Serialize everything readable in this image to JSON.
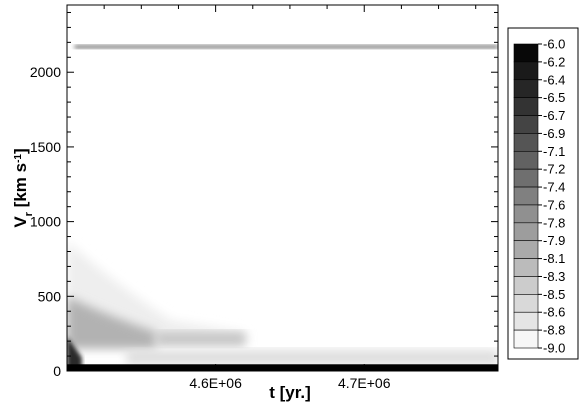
{
  "chart_data": {
    "type": "heatmap",
    "xlabel": "t [yr.]",
    "ylabel_main": "V",
    "ylabel_sub": "r",
    "ylabel_unit": " [km s",
    "ylabel_sup": "-1",
    "ylabel_close": "]",
    "xlim": [
      4500000,
      4790000
    ],
    "ylim": [
      0,
      2450
    ],
    "x_ticks": [
      {
        "value": 4600000,
        "label": "4.6E+06"
      },
      {
        "value": 4700000,
        "label": "4.7E+06"
      }
    ],
    "y_ticks": [
      {
        "value": 0,
        "label": "0"
      },
      {
        "value": 500,
        "label": "500"
      },
      {
        "value": 1000,
        "label": "1000"
      },
      {
        "value": 1500,
        "label": "1500"
      },
      {
        "value": 2000,
        "label": "2000"
      }
    ],
    "colorbar": {
      "levels": [
        "-6.0",
        "-6.2",
        "-6.4",
        "-6.5",
        "-6.7",
        "-6.9",
        "-7.1",
        "-7.2",
        "-7.4",
        "-7.6",
        "-7.8",
        "-7.9",
        "-8.1",
        "-8.3",
        "-8.5",
        "-8.6",
        "-8.8",
        "-9.0"
      ],
      "range": [
        -9.0,
        -6.0
      ]
    },
    "features": [
      {
        "name": "steady-band",
        "x_start": 4500000,
        "x_end": 4790000,
        "v_center": 2170,
        "v_halfwidth": 12,
        "level": -7.4
      },
      {
        "name": "floor-band",
        "x_start": 4500000,
        "x_end": 4790000,
        "v_low": 0,
        "v_high": 45,
        "level": -6.0
      },
      {
        "name": "plume-core",
        "x_start": 4500000,
        "x_end": 4510000,
        "v_low": 0,
        "v_high": 230,
        "level": -6.5
      },
      {
        "name": "plume-wing",
        "x_start": 4500000,
        "x_end": 4560000,
        "v_low": 150,
        "v_high": 500,
        "level": -8.1
      },
      {
        "name": "plume-haze",
        "x_start": 4500000,
        "x_end": 4620000,
        "v_low": 180,
        "v_high": 870,
        "level": -8.8
      },
      {
        "name": "trail",
        "x_start": 4560000,
        "x_end": 4620000,
        "v_low": 170,
        "v_high": 260,
        "level": -8.3
      },
      {
        "name": "late-band",
        "x_start": 4540000,
        "x_end": 4790000,
        "v_low": 40,
        "v_high": 140,
        "level": -8.6
      }
    ]
  }
}
